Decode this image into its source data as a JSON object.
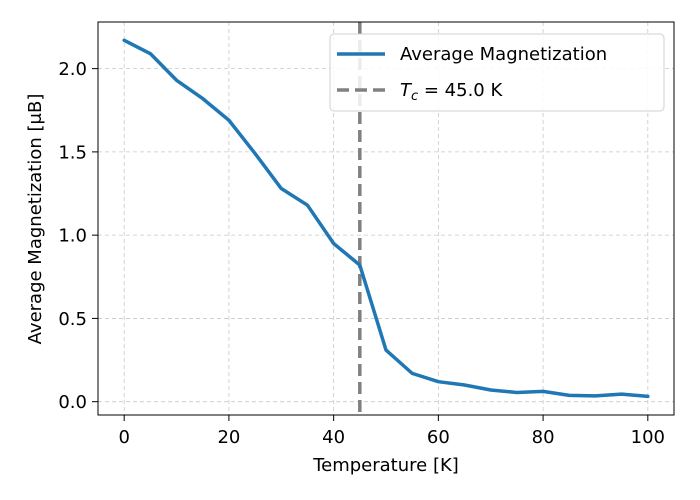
{
  "chart_data": {
    "type": "line",
    "title": "",
    "xlabel": "Temperature [K]",
    "ylabel": "Average Magnetization [μB]",
    "xlim": [
      -5,
      105
    ],
    "ylim": [
      -0.08,
      2.28
    ],
    "xticks": [
      0,
      20,
      40,
      60,
      80,
      100
    ],
    "yticks": [
      0.0,
      0.5,
      1.0,
      1.5,
      2.0
    ],
    "xtick_labels": [
      "0",
      "20",
      "40",
      "60",
      "80",
      "100"
    ],
    "ytick_labels": [
      "0.0",
      "0.5",
      "1.0",
      "1.5",
      "2.0"
    ],
    "grid": true,
    "legend_position": "upper-right",
    "series": [
      {
        "name": "Average Magnetization",
        "color": "#1f77b4",
        "style": "solid",
        "x": [
          0,
          5,
          10,
          15,
          20,
          25,
          30,
          35,
          40,
          45,
          50,
          55,
          60,
          65,
          70,
          75,
          80,
          85,
          90,
          95,
          100
        ],
        "y": [
          2.17,
          2.09,
          1.93,
          1.82,
          1.69,
          1.49,
          1.28,
          1.18,
          0.95,
          0.82,
          0.31,
          0.17,
          0.12,
          0.1,
          0.07,
          0.055,
          0.062,
          0.038,
          0.035,
          0.045,
          0.032
        ]
      }
    ],
    "vlines": [
      {
        "x": 45.0,
        "color": "#808080",
        "style": "dashed",
        "label_symbol": "T",
        "label_subscript": "c",
        "label_rest": " = 45.0 K"
      }
    ]
  }
}
